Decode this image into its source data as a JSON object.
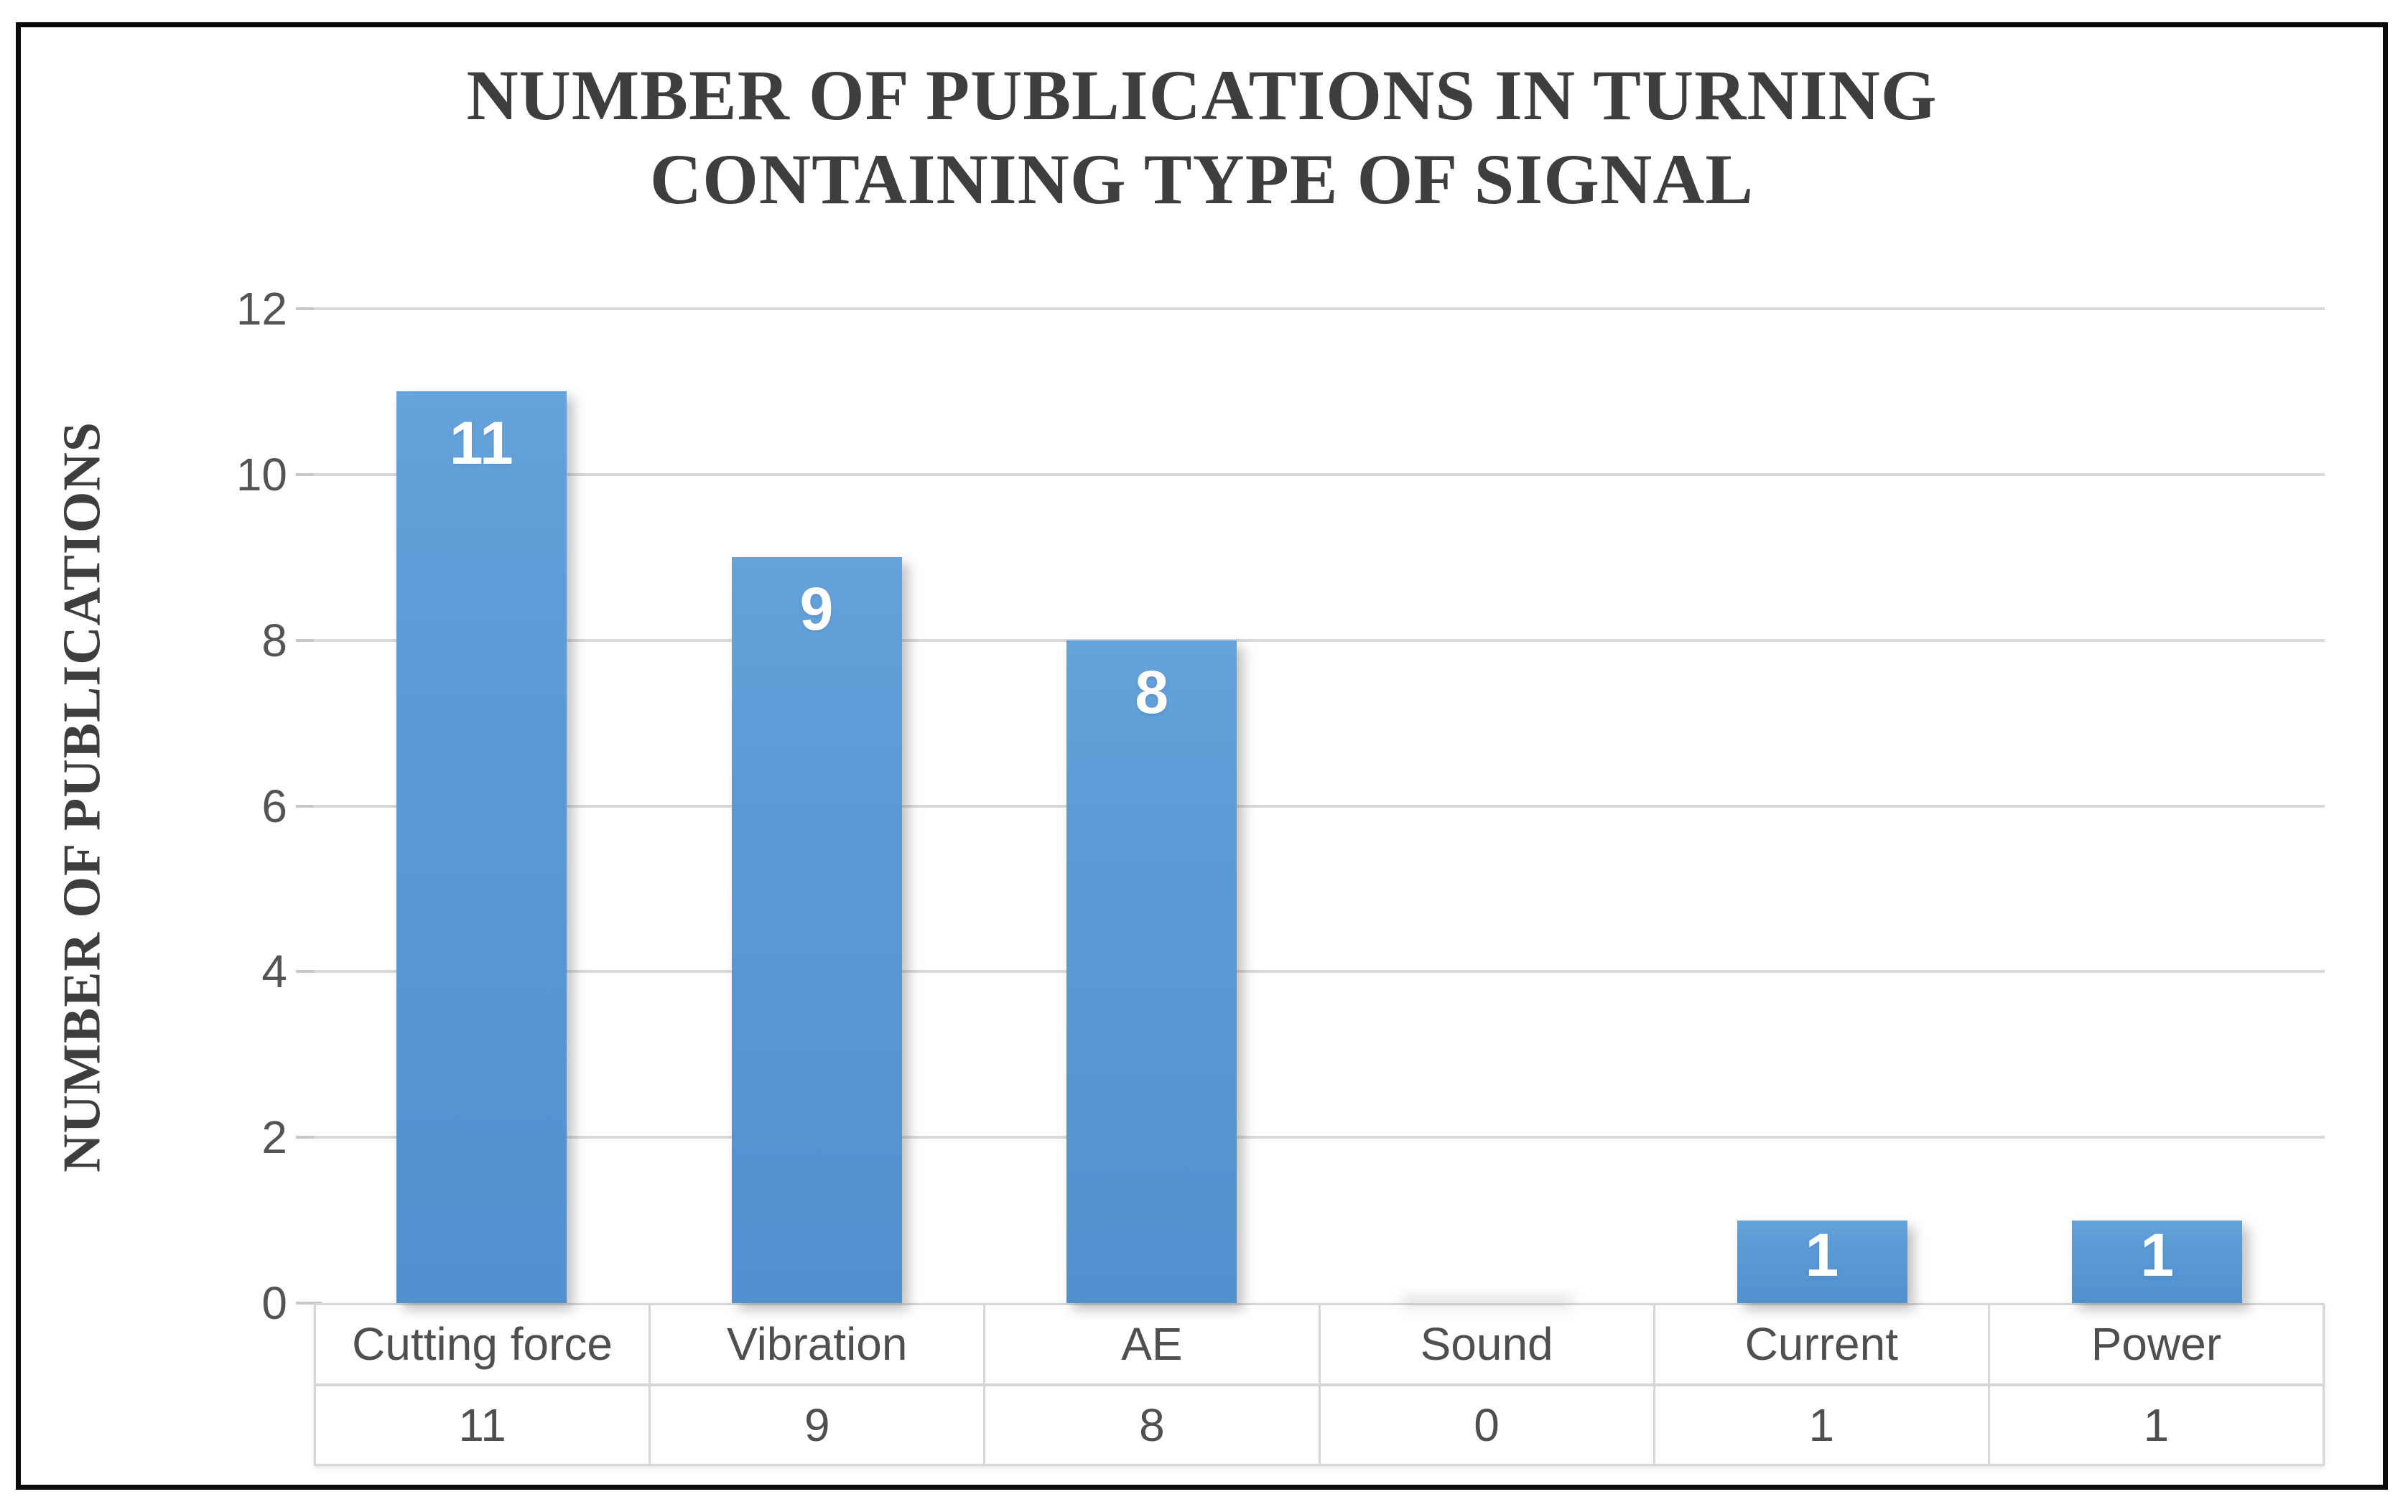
{
  "title": {
    "line1": "NUMBER OF PUBLICATIONS IN TURNING",
    "line2": "CONTAINING TYPE OF SIGNAL"
  },
  "chart_data": {
    "type": "bar",
    "title": "NUMBER OF PUBLICATIONS IN TURNING CONTAINING TYPE OF SIGNAL",
    "categories": [
      "Cutting force",
      "Vibration",
      "AE",
      "Sound",
      "Current",
      "Power"
    ],
    "values": [
      11,
      9,
      8,
      0,
      1,
      1
    ],
    "bar_labels": [
      "11",
      "9",
      "8",
      "",
      "1",
      "1"
    ],
    "xlabel": "",
    "ylabel": "NUMBER OF PUBLICATIONS",
    "ylim": [
      0,
      12
    ],
    "yticks": [
      12,
      10,
      8,
      6,
      4,
      2,
      0
    ],
    "grid": true,
    "legend": false,
    "data_table_shown": true
  },
  "colors": {
    "bar": "#5b9bd5",
    "bar_light": "#66a2dc",
    "bar_dark": "#5290cf",
    "grid": "#d9d9d9",
    "table_border": "#d6d6d6",
    "tick_text": "#545454",
    "table_text": "#4f4f4f",
    "title_text": "#3e3e3e",
    "bar_label": "#ffffff",
    "frame_border": "#0a0a0a"
  }
}
